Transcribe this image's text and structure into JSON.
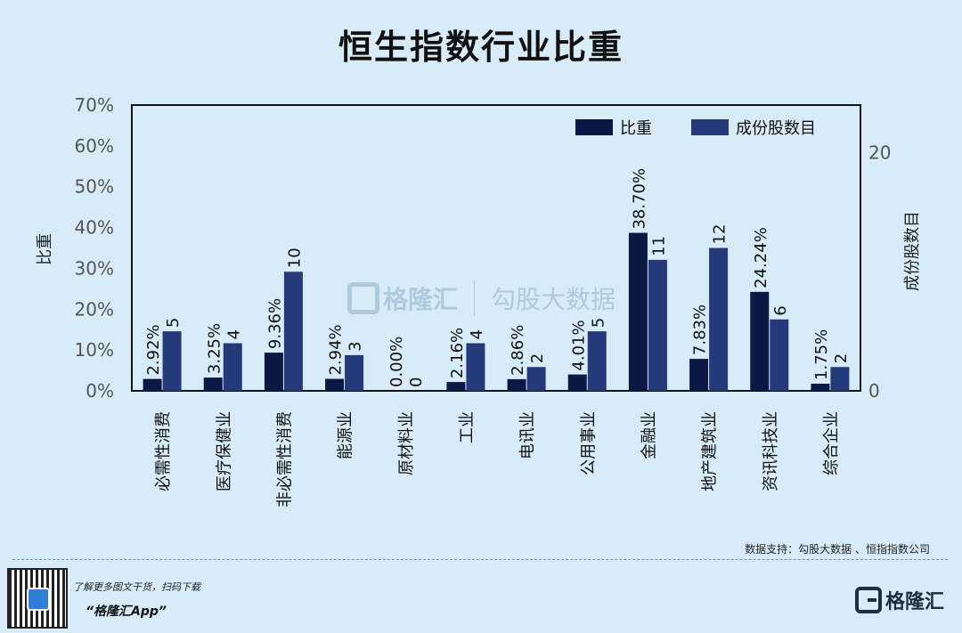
{
  "title": "恒生指数行业比重",
  "watermark": {
    "brand": "格隆汇",
    "site": "勾股大数据"
  },
  "footer": {
    "source": "数据支持：勾股大数据 、恒指指数公司",
    "promo_line1": "了解更多图文干货，扫码下载",
    "promo_line2": "“格隆汇App”",
    "logo_text": "格隆汇"
  },
  "colors": {
    "background": "#d7ecf8",
    "series_weight": "#0c1745",
    "series_count": "#243a7a"
  },
  "chart_data": {
    "type": "bar",
    "categories": [
      "必需性消费",
      "医疗保健业",
      "非必需性消费",
      "能源业",
      "原材料业",
      "工业",
      "电讯业",
      "公用事业",
      "金融业",
      "地产建筑业",
      "资讯科技业",
      "综合企业"
    ],
    "series": [
      {
        "name": "比重",
        "axis": "left",
        "values": [
          2.92,
          3.25,
          9.36,
          2.94,
          0.0,
          2.16,
          2.86,
          4.01,
          38.7,
          7.83,
          24.24,
          1.75
        ],
        "labels": [
          "2.92%",
          "3.25%",
          "9.36%",
          "2.94%",
          "0.00%",
          "2.16%",
          "2.86%",
          "4.01%",
          "38.70%",
          "7.83%",
          "24.24%",
          "1.75%"
        ]
      },
      {
        "name": "成份股数目",
        "axis": "right",
        "values": [
          5,
          4,
          10,
          3,
          0,
          4,
          2,
          5,
          11,
          12,
          6,
          2
        ],
        "labels": [
          "5",
          "4",
          "10",
          "3",
          "0",
          "4",
          "2",
          "5",
          "11",
          "12",
          "6",
          "2"
        ]
      }
    ],
    "ylabel": "比重",
    "y2label": "成份股数目",
    "ylim": [
      0,
      70
    ],
    "y2lim": [
      0,
      24
    ],
    "yticks": [
      "0%",
      "10%",
      "20%",
      "30%",
      "40%",
      "50%",
      "60%",
      "70%"
    ],
    "y2ticks": [
      "0",
      "20"
    ],
    "legend": [
      "比重",
      "成份股数目"
    ],
    "legend_position": "top-right"
  }
}
